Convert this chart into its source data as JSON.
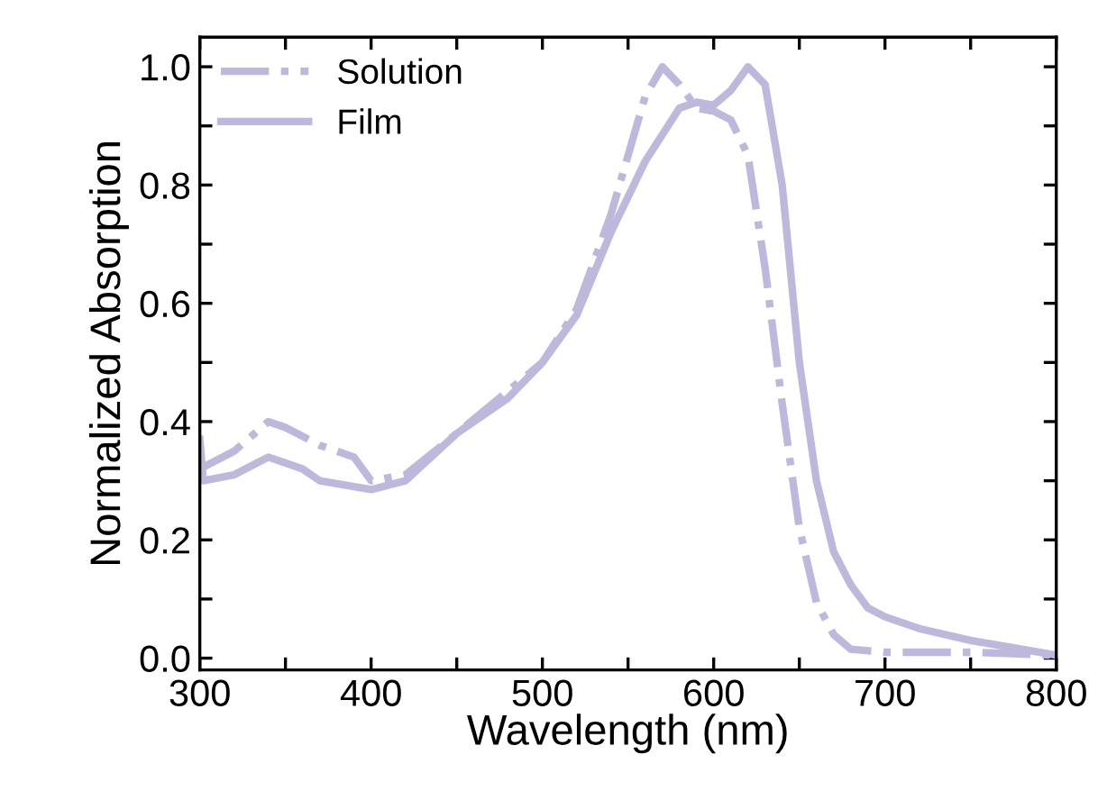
{
  "chart_data": {
    "type": "line",
    "xlabel": "Wavelength (nm)",
    "ylabel": "Normalized Absorption",
    "xlim": [
      300,
      800
    ],
    "ylim": [
      -0.02,
      1.05
    ],
    "xticks": [
      300,
      {
        "value": 350,
        "label": null
      },
      400,
      {
        "value": 450,
        "label": null
      },
      500,
      {
        "value": 550,
        "label": null
      },
      600,
      {
        "value": 650,
        "label": null
      },
      700,
      {
        "value": 750,
        "label": null
      },
      800
    ],
    "yticks": [
      {
        "value": 0,
        "label": "0.0"
      },
      {
        "value": 0.1,
        "label": null
      },
      0.2,
      {
        "value": 0.3,
        "label": null
      },
      0.4,
      {
        "value": 0.5,
        "label": null
      },
      0.6,
      {
        "value": 0.7,
        "label": null
      },
      0.8,
      {
        "value": 0.9,
        "label": null
      },
      {
        "value": 1,
        "label": "1.0"
      }
    ],
    "legend": "top left",
    "grid": false,
    "series": [
      {
        "name": "Solution",
        "color": "#bdb8dc",
        "line_style": "dashdot",
        "x": [
          300,
          320,
          340,
          350,
          370,
          390,
          400,
          420,
          450,
          500,
          520,
          540,
          550,
          560,
          570,
          580,
          590,
          600,
          610,
          620,
          630,
          640,
          650,
          660,
          670,
          680,
          700,
          750,
          800
        ],
        "values": [
          0.32,
          0.35,
          0.4,
          0.39,
          0.36,
          0.34,
          0.3,
          0.31,
          0.38,
          0.5,
          0.59,
          0.75,
          0.85,
          0.95,
          1.0,
          0.97,
          0.93,
          0.925,
          0.91,
          0.85,
          0.66,
          0.43,
          0.22,
          0.094,
          0.04,
          0.015,
          0.01,
          0.01,
          0.005
        ]
      },
      {
        "name": "Film",
        "color": "#bdb8dc",
        "line_style": "solid",
        "x": [
          300,
          302,
          320,
          340,
          360,
          370,
          390,
          400,
          420,
          450,
          480,
          500,
          520,
          540,
          560,
          580,
          590,
          600,
          610,
          620,
          630,
          640,
          650,
          660,
          670,
          680,
          690,
          700,
          720,
          750,
          800
        ],
        "values": [
          0.37,
          0.3,
          0.31,
          0.34,
          0.32,
          0.3,
          0.29,
          0.285,
          0.3,
          0.38,
          0.44,
          0.5,
          0.58,
          0.72,
          0.84,
          0.93,
          0.94,
          0.935,
          0.96,
          1.0,
          0.97,
          0.8,
          0.5,
          0.3,
          0.18,
          0.124,
          0.085,
          0.07,
          0.05,
          0.03,
          0.005
        ]
      }
    ]
  }
}
